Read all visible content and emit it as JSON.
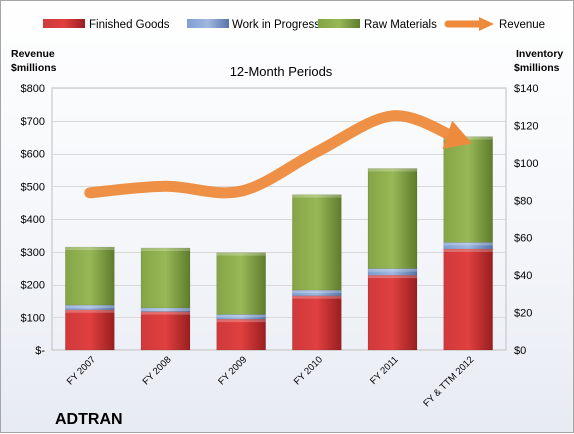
{
  "chart_data": {
    "type": "bar",
    "subtitle": "12-Month Periods",
    "company": "ADTRAN",
    "categories": [
      "FY 2007",
      "FY 2008",
      "FY 2009",
      "FY 2010",
      "FY 2011",
      "FY & TTM 2012"
    ],
    "left_axis": {
      "title_line1": "Revenue",
      "title_line2": "$millions",
      "ticks": [
        "$-",
        "$100",
        "$200",
        "$300",
        "$400",
        "$500",
        "$600",
        "$700",
        "$800"
      ],
      "ylim": [
        0,
        800
      ]
    },
    "right_axis": {
      "title_line1": "Inventory",
      "title_line2": "$millions",
      "ticks": [
        "$0",
        "$20",
        "$40",
        "$60",
        "$80",
        "$100",
        "$120",
        "$140"
      ],
      "ylim": [
        0,
        140
      ]
    },
    "series": [
      {
        "name": "Finished Goods",
        "axis": "right",
        "color": "#c0282a",
        "values": [
          21.5,
          20.5,
          16.5,
          29,
          40,
          54
        ]
      },
      {
        "name": "Work in Progress",
        "axis": "right",
        "color": "#6e8fc4",
        "values": [
          2.5,
          2,
          2.5,
          3,
          3.5,
          3.5
        ]
      },
      {
        "name": "Raw Materials",
        "axis": "right",
        "color": "#7a9a3c",
        "values": [
          31,
          32,
          33,
          51,
          53.5,
          56.5
        ]
      },
      {
        "name": "Revenue",
        "axis": "left",
        "type": "line",
        "color": "#ed8a3b",
        "values": [
          480,
          500,
          485,
          605,
          715,
          635
        ]
      }
    ],
    "grid": true,
    "legend": "top"
  }
}
